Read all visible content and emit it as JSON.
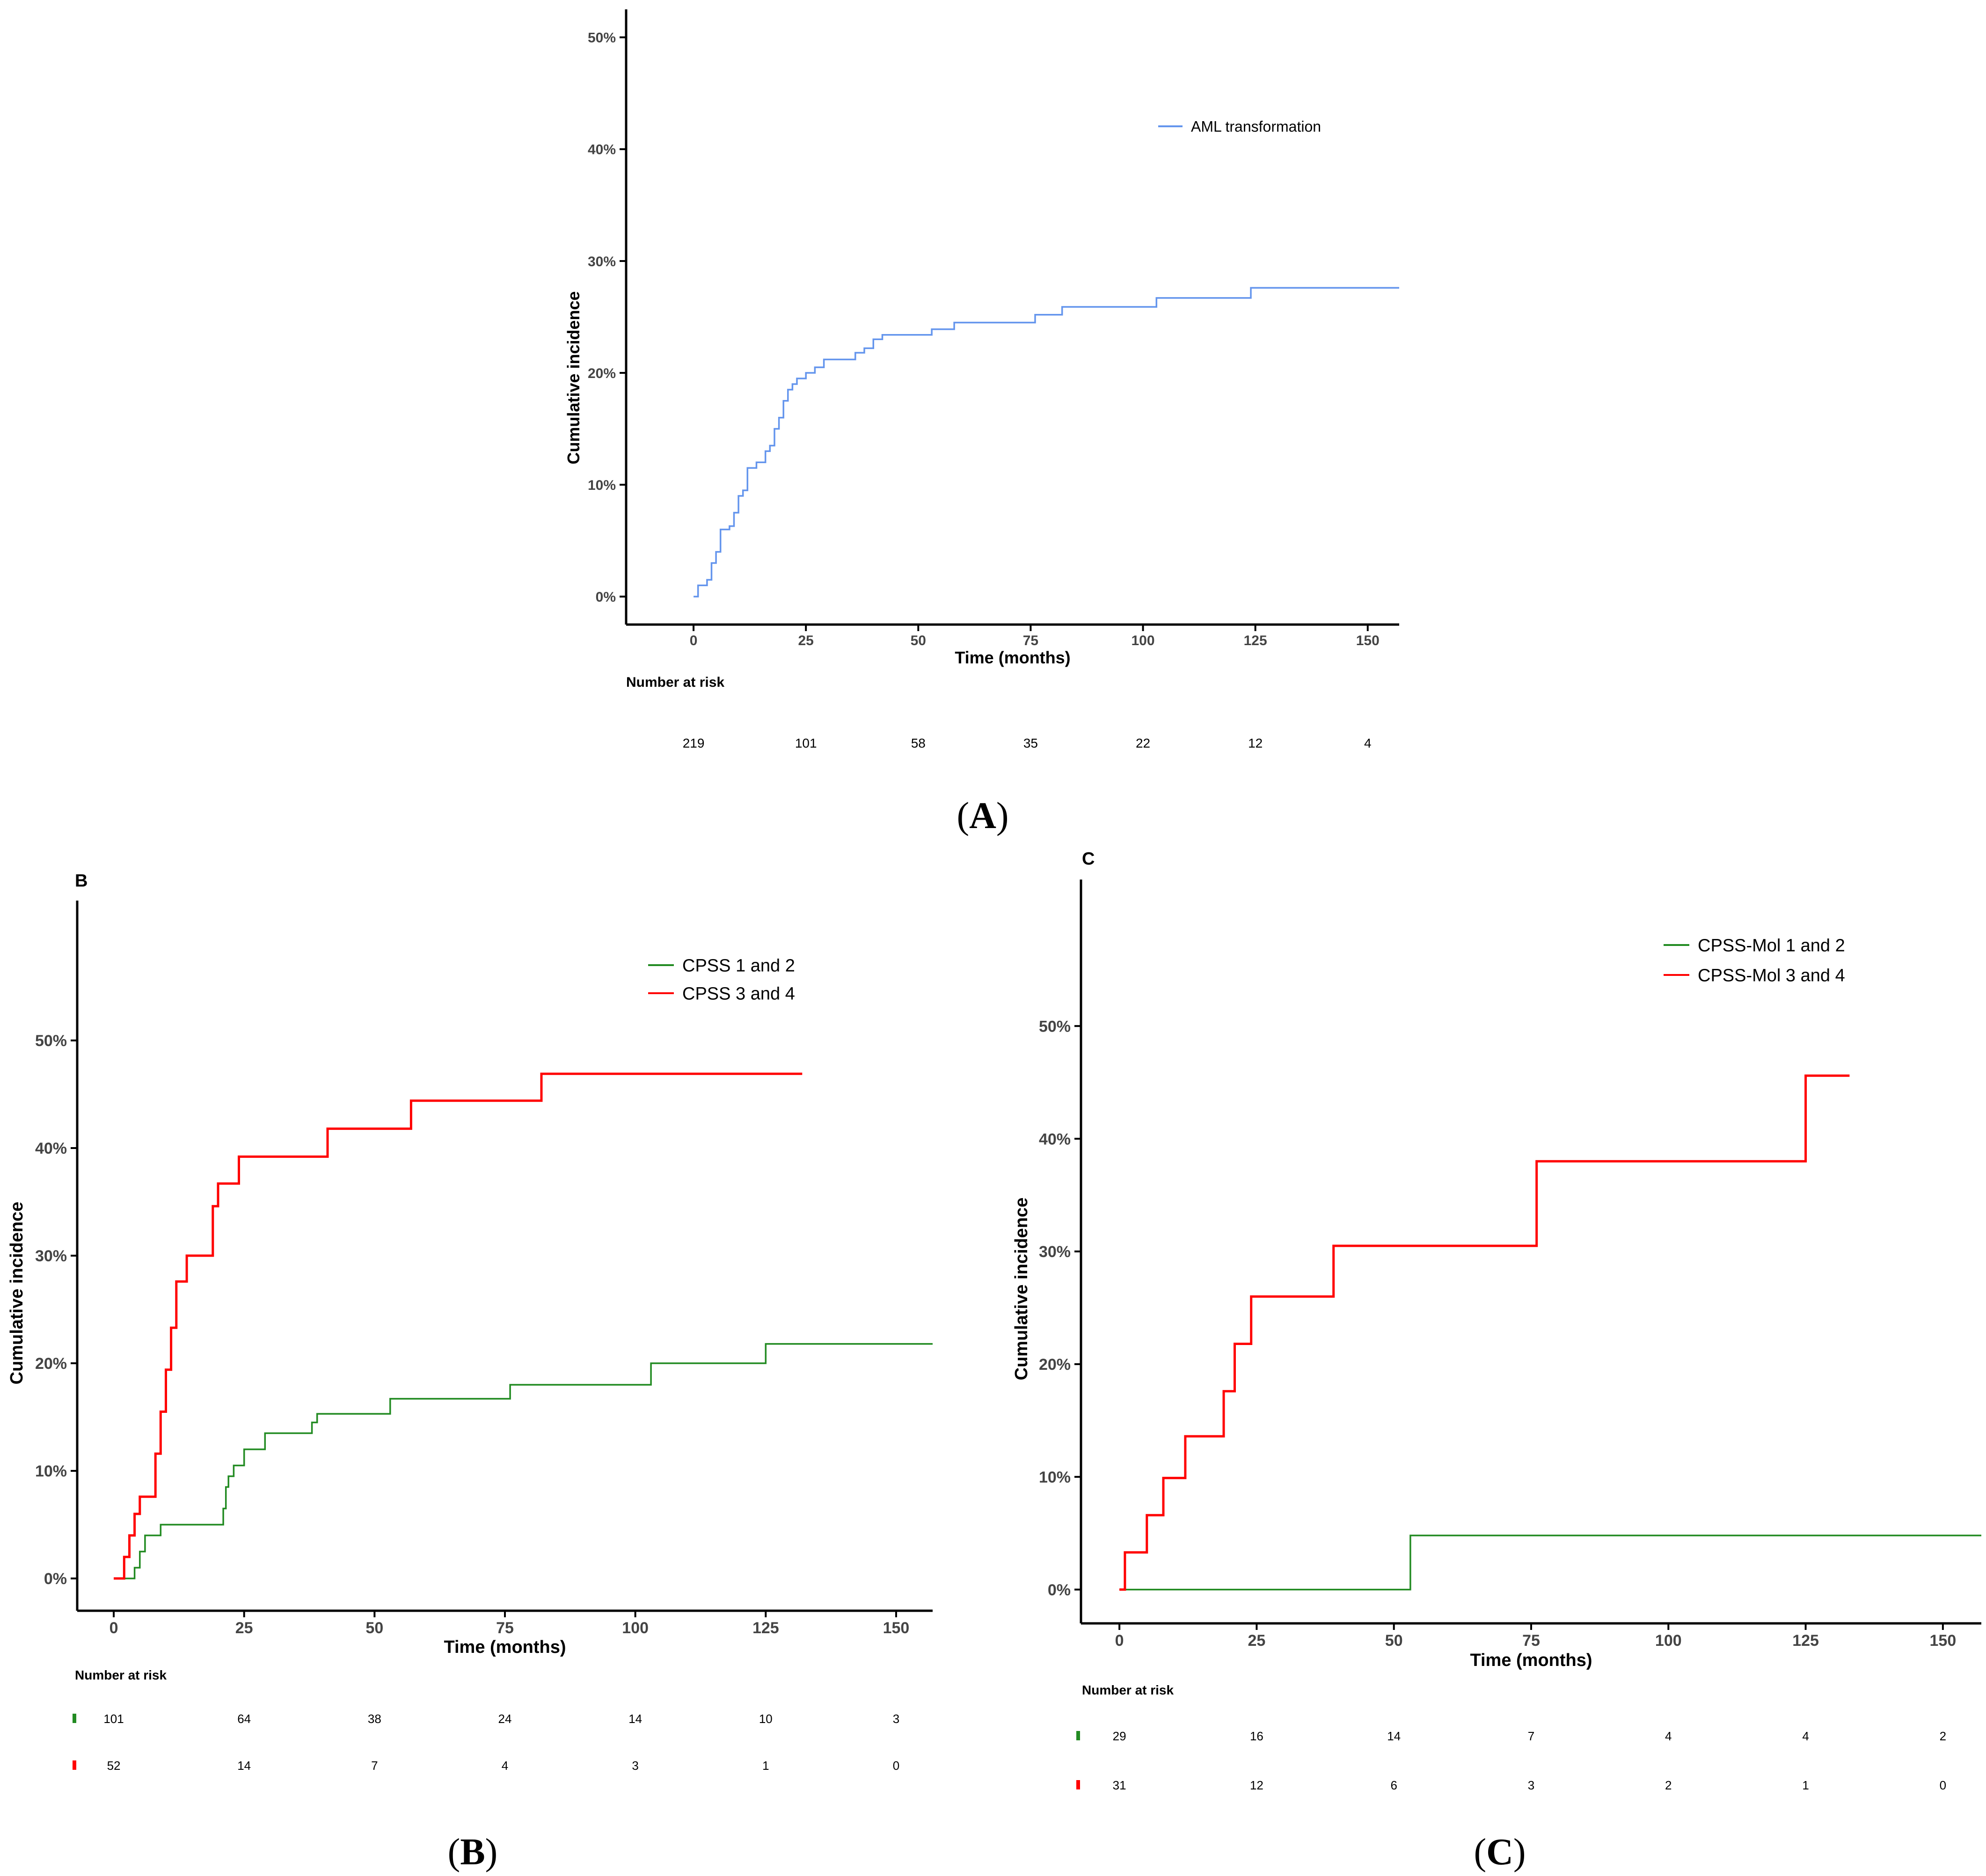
{
  "chart_data": [
    {
      "type": "line",
      "panel": "A",
      "caption": "(A)",
      "caption_letter": "A",
      "title": "",
      "xlabel": "Time (months)",
      "ylabel": "Cumulative incidence",
      "xlim": [
        -15,
        157
      ],
      "ylim": [
        -2.5,
        52.5
      ],
      "xticks": [
        0,
        25,
        50,
        75,
        100,
        125,
        150
      ],
      "yticks": [
        0,
        10,
        20,
        30,
        40,
        50
      ],
      "ytick_labels": [
        "0%",
        "10%",
        "20%",
        "30%",
        "40%",
        "50%"
      ],
      "legend_position": "top-right",
      "series": [
        {
          "name": "AML transformation",
          "color": "#6495ED",
          "x": [
            0,
            1,
            3,
            4,
            5,
            6,
            8,
            9,
            10,
            11,
            12,
            14,
            16,
            17,
            18,
            19,
            20,
            21,
            22,
            23,
            25,
            27,
            29,
            36,
            38,
            40,
            42,
            53,
            58,
            76,
            82,
            103,
            124,
            157
          ],
          "y": [
            0,
            1,
            1.5,
            3,
            4,
            6,
            6.3,
            7.5,
            9,
            9.5,
            11.5,
            12,
            13,
            13.5,
            15,
            16,
            17.5,
            18.5,
            19,
            19.5,
            20,
            20.5,
            21.2,
            21.8,
            22.2,
            23,
            23.4,
            23.9,
            24.5,
            25.2,
            25.9,
            26.7,
            27.6,
            27.6
          ]
        }
      ],
      "risk_table": {
        "title": "Number at risk",
        "times": [
          0,
          25,
          50,
          75,
          100,
          125,
          150
        ],
        "rows": [
          {
            "name": "AML transformation",
            "color": "#6495ED",
            "values": [
              "219",
              "101",
              "58",
              "35",
              "22",
              "12",
              "4"
            ]
          }
        ]
      }
    },
    {
      "type": "line",
      "panel": "B",
      "caption": "(B)",
      "caption_letter": "B",
      "title": "B",
      "xlabel": "Time (months)",
      "ylabel": "Cumulative incidence",
      "xlim": [
        -7,
        157
      ],
      "ylim": [
        -3,
        63
      ],
      "xticks": [
        0,
        25,
        50,
        75,
        100,
        125,
        150
      ],
      "yticks": [
        0,
        10,
        20,
        30,
        40,
        50
      ],
      "ytick_labels": [
        "0%",
        "10%",
        "20%",
        "30%",
        "40%",
        "50%"
      ],
      "legend_position": "top-right",
      "series": [
        {
          "name": "CPSS 1 and 2",
          "color": "#228B22",
          "x": [
            0,
            4,
            5,
            6,
            9,
            21,
            21.5,
            22,
            23,
            25,
            26,
            29,
            38,
            39,
            41,
            53,
            76,
            103,
            125,
            157
          ],
          "y": [
            0,
            1,
            2.5,
            4,
            5,
            6.5,
            8.5,
            9.5,
            10.5,
            12,
            12,
            13.5,
            14.5,
            15.3,
            15.3,
            16.7,
            18,
            20,
            21.8,
            21.8
          ]
        },
        {
          "name": "CPSS 3 and 4",
          "color": "#FF0000",
          "x": [
            0,
            2,
            3,
            4,
            5,
            8,
            9,
            10,
            11,
            12,
            14,
            18,
            19,
            20,
            24,
            41,
            57,
            82,
            132
          ],
          "y": [
            0,
            2,
            4,
            6,
            7.6,
            11.6,
            15.5,
            19.4,
            23.3,
            27.6,
            30,
            30,
            34.6,
            36.7,
            39.2,
            41.8,
            44.4,
            46.9,
            46.9
          ]
        }
      ],
      "risk_table": {
        "title": "Number at risk",
        "times": [
          0,
          25,
          50,
          75,
          100,
          125,
          150
        ],
        "rows": [
          {
            "name": "CPSS 1 and 2",
            "color": "#228B22",
            "values": [
              "101",
              "64",
              "38",
              "24",
              "14",
              "10",
              "3"
            ]
          },
          {
            "name": "CPSS 3 and 4",
            "color": "#FF0000",
            "values": [
              "52",
              "14",
              "7",
              "4",
              "3",
              "1",
              "0"
            ]
          }
        ]
      }
    },
    {
      "type": "line",
      "panel": "C",
      "caption": "(C)",
      "caption_letter": "C",
      "title": "C",
      "xlabel": "Time (months)",
      "ylabel": "Cumulative incidence",
      "xlim": [
        -7,
        157
      ],
      "ylim": [
        -3,
        63
      ],
      "xticks": [
        0,
        25,
        50,
        75,
        100,
        125,
        150
      ],
      "yticks": [
        0,
        10,
        20,
        30,
        40,
        50
      ],
      "ytick_labels": [
        "0%",
        "10%",
        "20%",
        "30%",
        "40%",
        "50%"
      ],
      "legend_position": "top-right",
      "series": [
        {
          "name": "CPSS-Mol 1 and 2",
          "color": "#228B22",
          "x": [
            0,
            53,
            157
          ],
          "y": [
            0,
            4.8,
            4.8
          ]
        },
        {
          "name": "CPSS-Mol 3 and 4",
          "color": "#FF0000",
          "x": [
            0,
            1,
            5,
            8,
            12,
            19,
            21,
            24,
            39,
            76,
            125,
            133
          ],
          "y": [
            0,
            3.3,
            6.6,
            9.9,
            13.6,
            17.6,
            21.8,
            26,
            30.5,
            38,
            45.6,
            45.6
          ]
        }
      ],
      "risk_table": {
        "title": "Number at risk",
        "times": [
          0,
          25,
          50,
          75,
          100,
          125,
          150
        ],
        "rows": [
          {
            "name": "CPSS-Mol 1 and 2",
            "color": "#228B22",
            "values": [
              "29",
              "16",
              "14",
              "7",
              "4",
              "4",
              "2"
            ]
          },
          {
            "name": "CPSS-Mol 3 and 4",
            "color": "#FF0000",
            "values": [
              "31",
              "12",
              "6",
              "3",
              "2",
              "1",
              "0"
            ]
          }
        ]
      }
    }
  ]
}
